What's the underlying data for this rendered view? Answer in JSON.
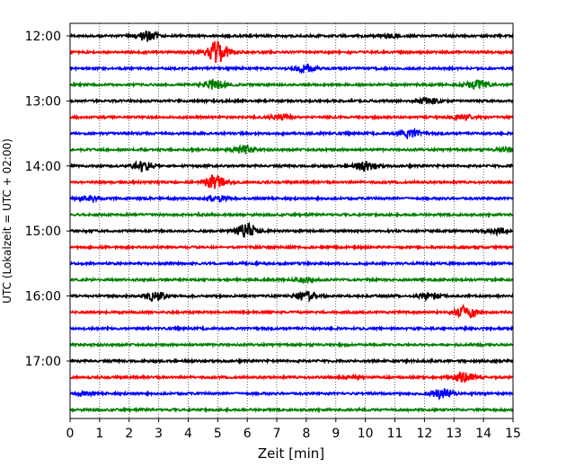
{
  "chart_data": {
    "type": "line",
    "chart_kind": "helicorder",
    "title": "",
    "xlabel": "Zeit  [min]",
    "ylabel": "UTC (Lokalzeit = UTC + 02:00)",
    "xlim": [
      0,
      15
    ],
    "x_ticks": [
      0,
      1,
      2,
      3,
      4,
      5,
      6,
      7,
      8,
      9,
      10,
      11,
      12,
      13,
      14,
      15
    ],
    "x_tick_labels": [
      "0",
      "1",
      "2",
      "3",
      "4",
      "5",
      "6",
      "7",
      "8",
      "9",
      "10",
      "11",
      "12",
      "13",
      "14",
      "15"
    ],
    "vertical_grid": "dotted at each minute",
    "y_tick_labels": [
      "12:00",
      "13:00",
      "14:00",
      "15:00",
      "16:00",
      "17:00"
    ],
    "trace_interval_min": 15,
    "trace_colors": [
      "#000000",
      "#ff0000",
      "#0000ff",
      "#008000"
    ],
    "traces": [
      {
        "start": "12:00",
        "color": "#000000",
        "bursts": [
          {
            "t": 2.6,
            "amp": 0.45
          },
          {
            "t": 10.8,
            "amp": 0.15
          }
        ]
      },
      {
        "start": "12:15",
        "color": "#ff0000",
        "bursts": [
          {
            "t": 5.0,
            "amp": 1.0
          }
        ]
      },
      {
        "start": "12:30",
        "color": "#0000ff",
        "bursts": [
          {
            "t": 8.0,
            "amp": 0.3
          }
        ]
      },
      {
        "start": "12:45",
        "color": "#008000",
        "bursts": [
          {
            "t": 4.9,
            "amp": 0.45
          },
          {
            "t": 13.8,
            "amp": 0.4
          }
        ]
      },
      {
        "start": "13:00",
        "color": "#000000",
        "bursts": [
          {
            "t": 12.1,
            "amp": 0.3
          }
        ]
      },
      {
        "start": "13:15",
        "color": "#ff0000",
        "bursts": [
          {
            "t": 7.1,
            "amp": 0.25
          },
          {
            "t": 13.3,
            "amp": 0.2
          }
        ]
      },
      {
        "start": "13:30",
        "color": "#0000ff",
        "bursts": [
          {
            "t": 11.5,
            "amp": 0.35
          }
        ]
      },
      {
        "start": "13:45",
        "color": "#008000",
        "bursts": [
          {
            "t": 5.9,
            "amp": 0.35
          },
          {
            "t": 14.8,
            "amp": 0.2
          }
        ]
      },
      {
        "start": "14:00",
        "color": "#000000",
        "bursts": [
          {
            "t": 2.5,
            "amp": 0.45
          },
          {
            "t": 10.0,
            "amp": 0.4
          }
        ]
      },
      {
        "start": "14:15",
        "color": "#ff0000",
        "bursts": [
          {
            "t": 4.9,
            "amp": 0.6
          }
        ]
      },
      {
        "start": "14:30",
        "color": "#0000ff",
        "bursts": [
          {
            "t": 0.6,
            "amp": 0.25
          },
          {
            "t": 5.0,
            "amp": 0.25
          }
        ]
      },
      {
        "start": "14:45",
        "color": "#008000",
        "bursts": []
      },
      {
        "start": "15:00",
        "color": "#000000",
        "bursts": [
          {
            "t": 6.0,
            "amp": 0.7
          },
          {
            "t": 14.4,
            "amp": 0.25
          }
        ]
      },
      {
        "start": "15:15",
        "color": "#ff0000",
        "bursts": []
      },
      {
        "start": "15:30",
        "color": "#0000ff",
        "bursts": []
      },
      {
        "start": "15:45",
        "color": "#008000",
        "bursts": [
          {
            "t": 8.0,
            "amp": 0.15
          }
        ]
      },
      {
        "start": "16:00",
        "color": "#000000",
        "bursts": [
          {
            "t": 2.9,
            "amp": 0.45
          },
          {
            "t": 8.0,
            "amp": 0.4
          },
          {
            "t": 12.2,
            "amp": 0.3
          }
        ]
      },
      {
        "start": "16:15",
        "color": "#ff0000",
        "bursts": [
          {
            "t": 13.4,
            "amp": 0.55
          }
        ]
      },
      {
        "start": "16:30",
        "color": "#0000ff",
        "bursts": []
      },
      {
        "start": "16:45",
        "color": "#008000",
        "bursts": []
      },
      {
        "start": "17:00",
        "color": "#000000",
        "bursts": []
      },
      {
        "start": "17:15",
        "color": "#ff0000",
        "bursts": [
          {
            "t": 13.4,
            "amp": 0.5
          },
          {
            "t": 9.5,
            "amp": 0.12
          }
        ]
      },
      {
        "start": "17:30",
        "color": "#0000ff",
        "bursts": [
          {
            "t": 12.6,
            "amp": 0.45
          },
          {
            "t": 0.4,
            "amp": 0.15
          }
        ]
      },
      {
        "start": "17:45",
        "color": "#008000",
        "bursts": []
      }
    ]
  }
}
